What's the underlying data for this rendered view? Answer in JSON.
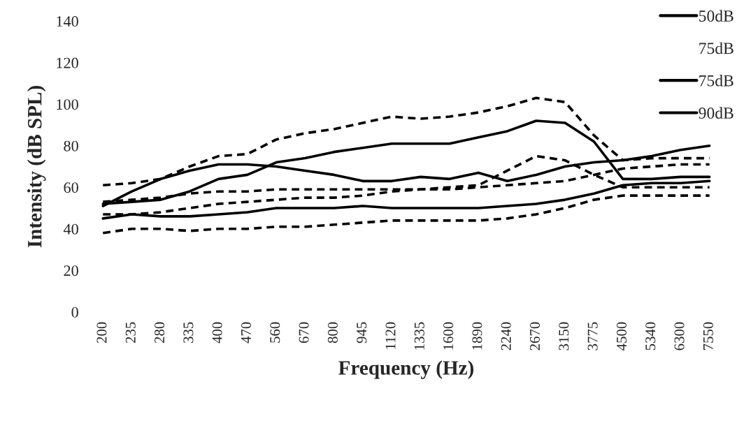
{
  "chart_data": {
    "type": "line",
    "xlabel": "Frequency (Hz)",
    "ylabel": "Intensity (dB SPL)",
    "categories": [
      "200",
      "235",
      "280",
      "335",
      "400",
      "470",
      "560",
      "670",
      "800",
      "945",
      "1120",
      "1335",
      "1600",
      "1890",
      "2240",
      "2670",
      "3150",
      "3775",
      "4500",
      "5340",
      "6300",
      "7550"
    ],
    "ylim": [
      0,
      140
    ],
    "yticks": [
      0,
      20,
      40,
      60,
      80,
      100,
      120,
      140
    ],
    "legend": "top right",
    "line_style": "solid",
    "series": [
      {
        "name": "50dB",
        "color": "#000000",
        "values": [
          45,
          47,
          46,
          46,
          47,
          48,
          50,
          50,
          50,
          51,
          50,
          50,
          50,
          50,
          51,
          52,
          54,
          57,
          61,
          62,
          62,
          63
        ]
      },
      {
        "name": "75dB",
        "values": [
          null,
          null,
          null,
          null,
          null,
          null,
          null,
          null,
          null,
          null,
          null,
          null,
          null,
          null,
          null,
          null,
          null,
          null,
          null,
          null,
          null,
          null
        ]
      },
      {
        "name": "75dB",
        "color": "#000000",
        "values": [
          51,
          58,
          64,
          68,
          71,
          71,
          70,
          68,
          66,
          63,
          63,
          65,
          64,
          67,
          63,
          66,
          70,
          72,
          73,
          75,
          78,
          80
        ]
      },
      {
        "name": "90dB",
        "color": "#000000",
        "values": [
          52,
          53,
          54,
          58,
          64,
          66,
          72,
          74,
          77,
          79,
          81,
          81,
          81,
          84,
          87,
          92,
          91,
          82,
          64,
          64,
          65,
          65
        ]
      },
      {
        "color": "#000000",
        "line_style": "dashed",
        "values": [
          61,
          62,
          64,
          70,
          75,
          76,
          83,
          86,
          88,
          91,
          94,
          93,
          94,
          96,
          99,
          103,
          101,
          85,
          73,
          74,
          74,
          74
        ]
      },
      {
        "color": "#000000",
        "line_style": "dashed",
        "values": [
          53,
          54,
          55,
          57,
          58,
          58,
          59,
          59,
          59,
          59,
          59,
          59,
          60,
          61,
          68,
          75,
          73,
          66,
          60,
          60,
          60,
          60
        ]
      },
      {
        "color": "#000000",
        "line_style": "dashed",
        "values": [
          47,
          47,
          48,
          50,
          52,
          53,
          54,
          55,
          55,
          56,
          58,
          59,
          59,
          60,
          61,
          62,
          63,
          66,
          69,
          70,
          71,
          71
        ]
      },
      {
        "color": "#000000",
        "line_style": "dashed",
        "values": [
          38,
          40,
          40,
          39,
          40,
          40,
          41,
          41,
          42,
          43,
          44,
          44,
          44,
          44,
          45,
          47,
          50,
          54,
          56,
          56,
          56,
          56
        ]
      }
    ]
  }
}
